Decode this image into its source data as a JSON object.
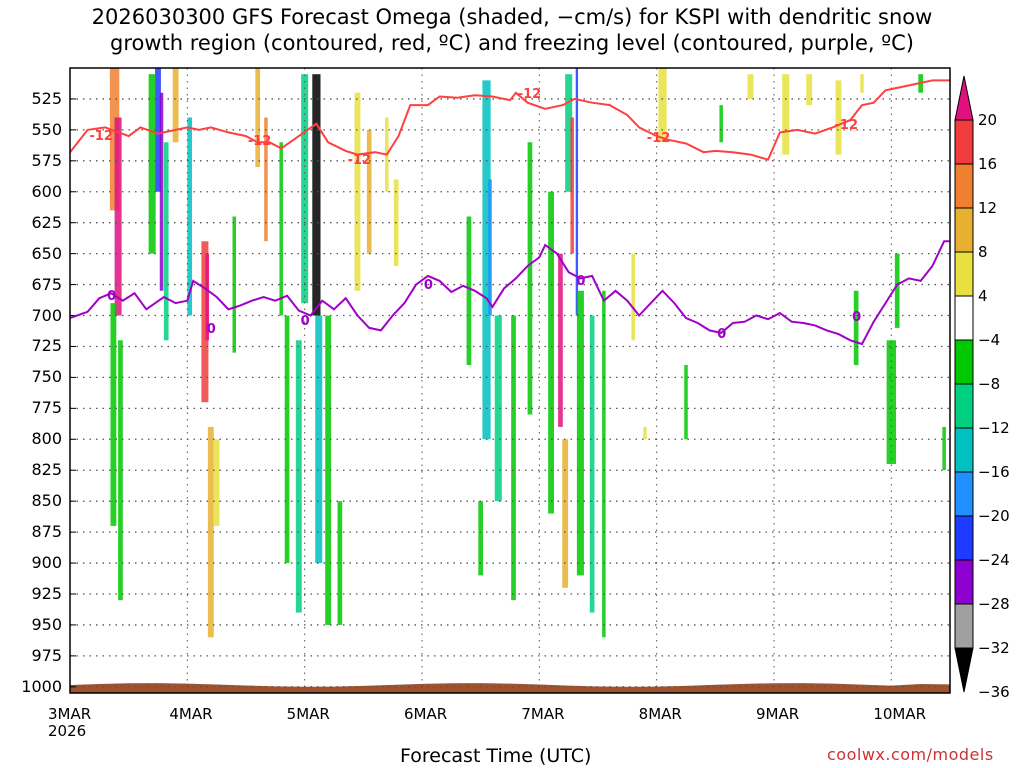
{
  "chart_data": {
    "type": "heatmap",
    "title_line1": "2026030300 GFS Forecast Omega (shaded, −cm/s) for KSPI with dendritic snow",
    "title_line2": "growth region (contoured, red, ºC) and freezing level (contoured, purple, ºC)",
    "xlabel": "Forecast Time (UTC)",
    "credit": "coolwx.com/models",
    "x_range_days": [
      0,
      7.5
    ],
    "x_ticks": [
      {
        "label": "3MAR",
        "day": 0
      },
      {
        "label": "4MAR",
        "day": 1
      },
      {
        "label": "5MAR",
        "day": 2
      },
      {
        "label": "6MAR",
        "day": 3
      },
      {
        "label": "7MAR",
        "day": 4
      },
      {
        "label": "8MAR",
        "day": 5
      },
      {
        "label": "9MAR",
        "day": 6
      },
      {
        "label": "10MAR",
        "day": 7
      }
    ],
    "x_year_label": "2026",
    "y_range_hpa": [
      500,
      1005
    ],
    "y_ticks": [
      "525",
      "550",
      "575",
      "600",
      "625",
      "650",
      "675",
      "700",
      "725",
      "750",
      "775",
      "800",
      "825",
      "850",
      "875",
      "900",
      "925",
      "950",
      "975",
      "1000"
    ],
    "colorbar": {
      "labels": [
        "20",
        "16",
        "12",
        "8",
        "4",
        "−4",
        "−8",
        "−12",
        "−16",
        "−20",
        "−24",
        "−28",
        "−32",
        "−36"
      ],
      "colors": [
        "#e0117f",
        "#f03c3c",
        "#f08030",
        "#e8b030",
        "#e8e040",
        "#ffffff",
        "#00c800",
        "#00d080",
        "#00c0c0",
        "#1e90ff",
        "#1e3cff",
        "#8c00d0",
        "#a0a0a0",
        "#000000"
      ]
    },
    "colors": {
      "dgz_contour": "#ff4040",
      "freezing_contour": "#a000c8",
      "terrain": "#a0522d",
      "grid": "#555555"
    },
    "dgz_label": "-12",
    "freezing_label": "0",
    "dgz_line": [
      [
        0,
        568
      ],
      [
        0.15,
        550
      ],
      [
        0.3,
        548
      ],
      [
        0.5,
        555
      ],
      [
        0.6,
        548
      ],
      [
        0.75,
        553
      ],
      [
        0.9,
        550
      ],
      [
        1.0,
        548
      ],
      [
        1.1,
        550
      ],
      [
        1.2,
        548
      ],
      [
        1.35,
        552
      ],
      [
        1.5,
        555
      ],
      [
        1.6,
        560
      ],
      [
        1.7,
        560
      ],
      [
        1.8,
        565
      ],
      [
        1.95,
        555
      ],
      [
        2.1,
        545
      ],
      [
        2.2,
        560
      ],
      [
        2.35,
        567
      ],
      [
        2.45,
        570
      ],
      [
        2.6,
        568
      ],
      [
        2.7,
        570
      ],
      [
        2.8,
        555
      ],
      [
        2.9,
        530
      ],
      [
        3.05,
        530
      ],
      [
        3.15,
        523
      ],
      [
        3.3,
        524
      ],
      [
        3.45,
        522
      ],
      [
        3.6,
        523
      ],
      [
        3.75,
        526
      ],
      [
        3.8,
        520
      ],
      [
        3.9,
        528
      ],
      [
        4.05,
        533
      ],
      [
        4.2,
        530
      ],
      [
        4.3,
        525
      ],
      [
        4.45,
        528
      ],
      [
        4.6,
        530
      ],
      [
        4.75,
        538
      ],
      [
        4.85,
        548
      ],
      [
        5.0,
        555
      ],
      [
        5.1,
        558
      ],
      [
        5.25,
        561
      ],
      [
        5.4,
        568
      ],
      [
        5.5,
        567
      ],
      [
        5.65,
        568
      ],
      [
        5.8,
        570
      ],
      [
        5.95,
        574
      ],
      [
        6.05,
        552
      ],
      [
        6.2,
        550
      ],
      [
        6.35,
        553
      ],
      [
        6.5,
        548
      ],
      [
        6.65,
        542
      ],
      [
        6.75,
        530
      ],
      [
        6.85,
        528
      ],
      [
        6.95,
        518
      ],
      [
        7.1,
        515
      ],
      [
        7.25,
        512
      ],
      [
        7.35,
        510
      ],
      [
        7.5,
        510
      ]
    ],
    "freezing_line": [
      [
        0,
        702
      ],
      [
        0.15,
        697
      ],
      [
        0.25,
        686
      ],
      [
        0.35,
        682
      ],
      [
        0.45,
        688
      ],
      [
        0.55,
        682
      ],
      [
        0.65,
        695
      ],
      [
        0.8,
        685
      ],
      [
        0.9,
        690
      ],
      [
        1.0,
        688
      ],
      [
        1.05,
        672
      ],
      [
        1.15,
        678
      ],
      [
        1.25,
        685
      ],
      [
        1.35,
        695
      ],
      [
        1.45,
        692
      ],
      [
        1.55,
        688
      ],
      [
        1.65,
        685
      ],
      [
        1.75,
        688
      ],
      [
        1.85,
        684
      ],
      [
        1.95,
        696
      ],
      [
        2.05,
        700
      ],
      [
        2.15,
        688
      ],
      [
        2.25,
        695
      ],
      [
        2.35,
        686
      ],
      [
        2.45,
        700
      ],
      [
        2.55,
        710
      ],
      [
        2.65,
        712
      ],
      [
        2.75,
        700
      ],
      [
        2.85,
        690
      ],
      [
        2.95,
        675
      ],
      [
        3.05,
        668
      ],
      [
        3.15,
        672
      ],
      [
        3.25,
        681
      ],
      [
        3.35,
        676
      ],
      [
        3.45,
        680
      ],
      [
        3.55,
        686
      ],
      [
        3.6,
        693
      ],
      [
        3.7,
        678
      ],
      [
        3.8,
        670
      ],
      [
        3.9,
        660
      ],
      [
        4.0,
        653
      ],
      [
        4.05,
        643
      ],
      [
        4.15,
        650
      ],
      [
        4.25,
        665
      ],
      [
        4.35,
        670
      ],
      [
        4.45,
        668
      ],
      [
        4.55,
        688
      ],
      [
        4.65,
        680
      ],
      [
        4.75,
        688
      ],
      [
        4.85,
        700
      ],
      [
        4.95,
        690
      ],
      [
        5.05,
        680
      ],
      [
        5.15,
        690
      ],
      [
        5.25,
        702
      ],
      [
        5.35,
        706
      ],
      [
        5.45,
        712
      ],
      [
        5.55,
        714
      ],
      [
        5.65,
        706
      ],
      [
        5.75,
        705
      ],
      [
        5.85,
        700
      ],
      [
        5.95,
        703
      ],
      [
        6.05,
        698
      ],
      [
        6.15,
        705
      ],
      [
        6.25,
        706
      ],
      [
        6.35,
        708
      ],
      [
        6.45,
        712
      ],
      [
        6.55,
        715
      ],
      [
        6.65,
        720
      ],
      [
        6.75,
        723
      ],
      [
        6.85,
        705
      ],
      [
        6.95,
        690
      ],
      [
        7.05,
        675
      ],
      [
        7.15,
        670
      ],
      [
        7.25,
        672
      ],
      [
        7.35,
        660
      ],
      [
        7.45,
        640
      ],
      [
        7.5,
        640
      ]
    ]
  }
}
